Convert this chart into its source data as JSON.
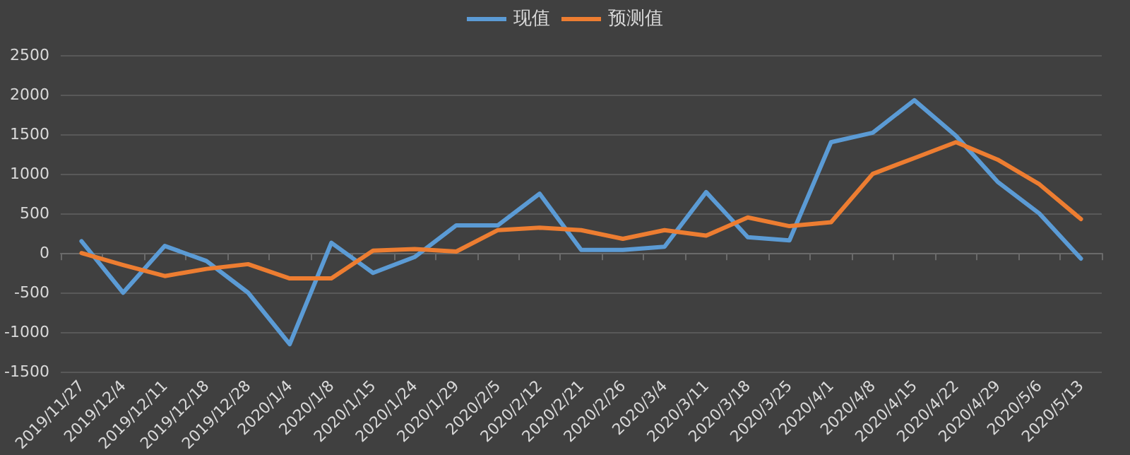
{
  "chart_data": {
    "type": "line",
    "categories": [
      "2019/11/27",
      "2019/12/4",
      "2019/12/11",
      "2019/12/18",
      "2019/12/28",
      "2020/1/4",
      "2020/1/8",
      "2020/1/15",
      "2020/1/24",
      "2020/1/29",
      "2020/2/5",
      "2020/2/12",
      "2020/2/21",
      "2020/2/26",
      "2020/3/4",
      "2020/3/11",
      "2020/3/18",
      "2020/3/25",
      "2020/4/1",
      "2020/4/8",
      "2020/4/15",
      "2020/4/22",
      "2020/4/29",
      "2020/5/6",
      "2020/5/13"
    ],
    "series": [
      {
        "name": "现值",
        "color": "#5b9bd5",
        "values": [
          150,
          -500,
          90,
          -100,
          -500,
          -1150,
          130,
          -250,
          -50,
          350,
          350,
          750,
          40,
          40,
          80,
          770,
          200,
          160,
          1400,
          1520,
          1930,
          1480,
          900,
          500,
          -70
        ]
      },
      {
        "name": "预测值",
        "color": "#ed7d31",
        "values": [
          0,
          -150,
          -290,
          -200,
          -140,
          -320,
          -320,
          30,
          50,
          20,
          290,
          320,
          290,
          180,
          290,
          220,
          450,
          340,
          390,
          1000,
          1200,
          1400,
          1180,
          870,
          430
        ]
      }
    ],
    "ylim": [
      -1500,
      2500
    ],
    "yticks": [
      -1500,
      -1000,
      -500,
      0,
      500,
      1000,
      1500,
      2000,
      2500
    ],
    "grid": "y",
    "legend": "top",
    "marker": "none",
    "line_style": "solid"
  }
}
